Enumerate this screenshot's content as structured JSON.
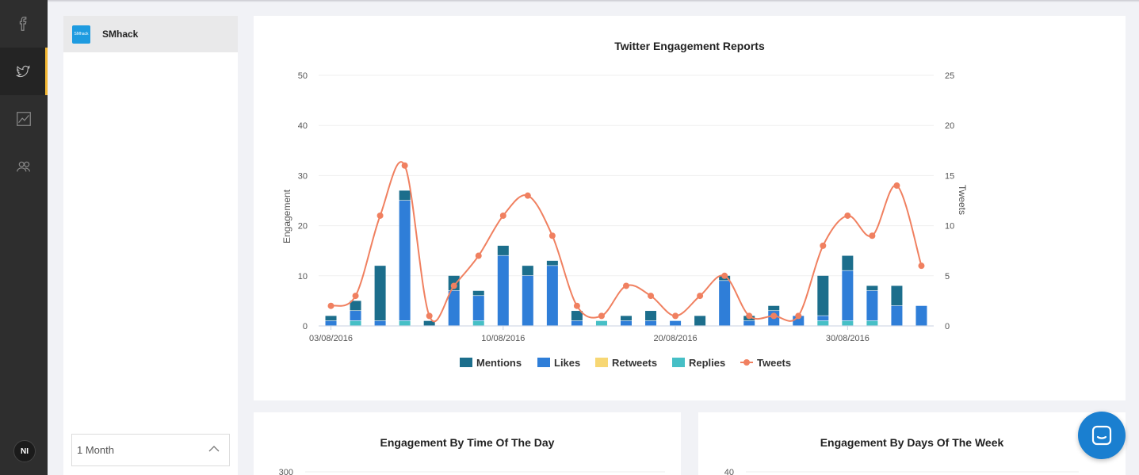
{
  "nav": {
    "items": [
      {
        "name": "facebook",
        "icon": "facebook-icon",
        "active": false
      },
      {
        "name": "twitter",
        "icon": "twitter-icon",
        "active": true
      },
      {
        "name": "analytics",
        "icon": "chart-icon",
        "active": false
      },
      {
        "name": "team",
        "icon": "users-icon",
        "active": false
      }
    ],
    "avatar_initials": "NI",
    "accent": "#f2b632"
  },
  "accounts": {
    "items": [
      {
        "name": "SMhack",
        "logo_text": "SMhack"
      }
    ]
  },
  "period": {
    "selected": "1 Month"
  },
  "reports": {
    "main_title": "Twitter Engagement Reports",
    "time_of_day_title": "Engagement By Time Of The Day",
    "days_of_week_title": "Engagement By Days Of The Week",
    "time_of_day_y_top": "300",
    "days_of_week_y_top": "40"
  },
  "chart_data": {
    "type": "bar",
    "title": "Twitter Engagement Reports",
    "ylabel": "Engagement",
    "y2label": "Tweets",
    "ylim": [
      0,
      50
    ],
    "y2lim": [
      0,
      25
    ],
    "yticks": [
      0,
      10,
      20,
      30,
      40,
      50
    ],
    "y2ticks": [
      0,
      5,
      10,
      15,
      20,
      25
    ],
    "x_tick_labels": [
      {
        "index": 0,
        "label": "03/08/2016"
      },
      {
        "index": 7,
        "label": "10/08/2016"
      },
      {
        "index": 14,
        "label": "20/08/2016"
      },
      {
        "index": 21,
        "label": "30/08/2016"
      }
    ],
    "legend_position": "bottom",
    "series": [
      {
        "name": "Mentions",
        "type": "bar",
        "stack": true,
        "color": "#1c6e8c",
        "values": [
          1,
          2,
          11,
          2,
          1,
          3,
          1,
          2,
          2,
          1,
          2,
          0,
          1,
          2,
          0,
          2,
          1,
          1,
          1,
          0,
          8,
          3,
          1,
          4,
          0
        ]
      },
      {
        "name": "Likes",
        "type": "bar",
        "stack": true,
        "color": "#2f7ed8",
        "values": [
          1,
          2,
          1,
          24,
          0,
          7,
          5,
          14,
          10,
          12,
          1,
          0,
          1,
          1,
          1,
          0,
          9,
          1,
          3,
          2,
          1,
          10,
          6,
          4,
          4
        ]
      },
      {
        "name": "Retweets",
        "type": "bar",
        "stack": true,
        "color": "#f7d774",
        "values": [
          0,
          0,
          0,
          0,
          0,
          0,
          0,
          0,
          0,
          0,
          0,
          0,
          0,
          0,
          0,
          0,
          0,
          0,
          0,
          0,
          0,
          0,
          0,
          0,
          0
        ]
      },
      {
        "name": "Replies",
        "type": "bar",
        "stack": true,
        "color": "#46bfc6",
        "values": [
          0,
          1,
          0,
          1,
          0,
          0,
          1,
          0,
          0,
          0,
          0,
          1,
          0,
          0,
          0,
          0,
          0,
          0,
          0,
          0,
          1,
          1,
          1,
          0,
          0
        ]
      },
      {
        "name": "Tweets",
        "type": "line",
        "axis": "right",
        "color": "#f08060",
        "values": [
          2,
          3,
          11,
          16,
          1,
          4,
          7,
          11,
          13,
          9,
          2,
          1,
          4,
          3,
          1,
          3,
          5,
          1,
          1,
          1,
          8,
          11,
          9,
          14,
          6
        ]
      }
    ]
  }
}
